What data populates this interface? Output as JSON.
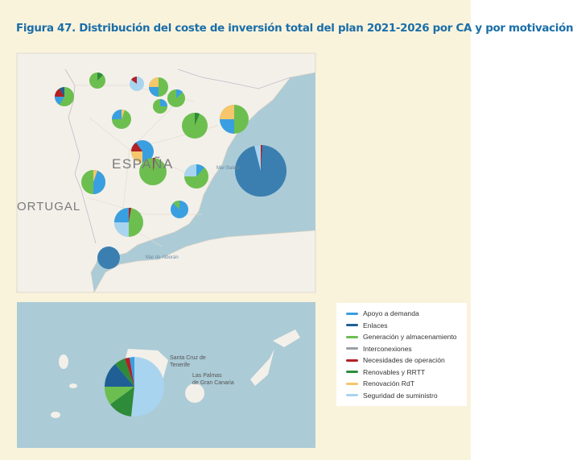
{
  "title": "Figura 47. Distribución del coste de inversión total del plan 2021-2026 por CA y por motivación",
  "colors": {
    "page_bg": "#faf3dc",
    "sea": "#abcbd6",
    "land": "#f3f0ea",
    "title": "#1a6ea8"
  },
  "map_labels": {
    "espana": "ESPAÑA",
    "portugal": "ORTUGAL",
    "mar_alboran": "Mar de Alborán",
    "mar_balear": "Mar Balear",
    "santa_cruz": "Santa Cruz de Tenerife",
    "las_palmas": "Las Palmas de Gran Canaria"
  },
  "legend": {
    "items": [
      {
        "label": "Apoyo a demanda",
        "color": "#3a9fe0"
      },
      {
        "label": "Enlaces",
        "color": "#1f5f96"
      },
      {
        "label": "Generación y almacenamiento",
        "color": "#6cbf4f"
      },
      {
        "label": "Interconexiones",
        "color": "#9aa0a6"
      },
      {
        "label": "Necesidades de operación",
        "color": "#b32025"
      },
      {
        "label": "Renovables y RRTT",
        "color": "#2e8b3a"
      },
      {
        "label": "Renovación RdT",
        "color": "#f5c66b"
      },
      {
        "label": "Seguridad de suministro",
        "color": "#a9d4ef"
      }
    ]
  }
}
